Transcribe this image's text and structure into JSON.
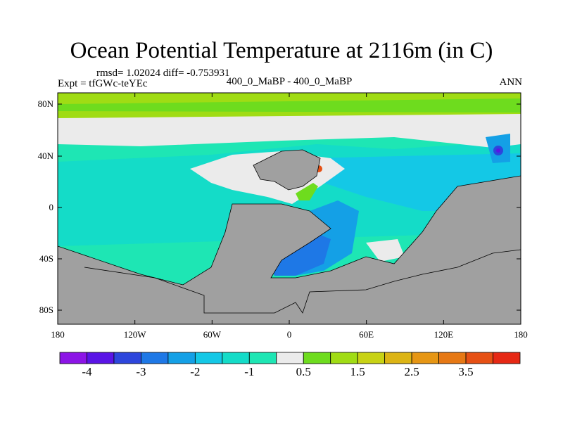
{
  "title": "Ocean Potential Temperature at 2116m (in C)",
  "stats_text": "rmsd= 1.02024 diff= -0.753931",
  "experiment_label": "Expt = tfGWc-teYEc",
  "subtitle": "400_0_MaBP - 400_0_MaBP",
  "season": "ANN",
  "map": {
    "longitude_range": [
      -180,
      180
    ],
    "latitude_range": [
      -90,
      90
    ],
    "land_color": "#a0a0a0",
    "x_ticks": [
      "180",
      "120W",
      "60W",
      "0",
      "60E",
      "120E",
      "180"
    ],
    "y_ticks": [
      "80N",
      "40N",
      "0",
      "40S",
      "80S"
    ]
  },
  "colorbar": {
    "colors": [
      "#8c14e6",
      "#5a14e6",
      "#2d46dc",
      "#1e78e6",
      "#14a0e6",
      "#14c8e6",
      "#14dcc8",
      "#1ee6b4",
      "#ebebeb",
      "#6edc1e",
      "#a0dc14",
      "#c8d214",
      "#dcb414",
      "#e69614",
      "#e67814",
      "#e65014",
      "#e62814"
    ],
    "tick_labels": [
      "-4",
      "-3",
      "-2",
      "-1",
      "0.5",
      "1.5",
      "2.5",
      "3.5"
    ]
  }
}
